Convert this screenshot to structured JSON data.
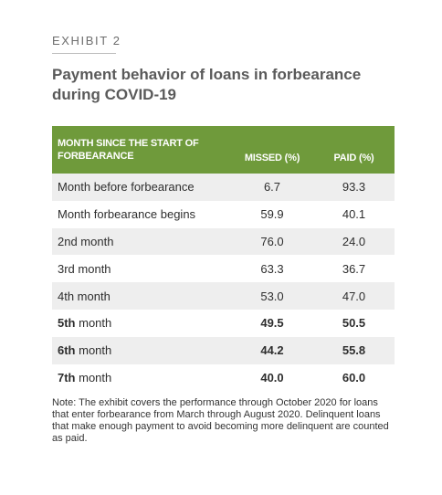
{
  "exhibit": "EXHIBIT 2",
  "title": "Payment behavior of loans in forbearance during COVID-19",
  "note": "Note: The exhibit covers the performance through October 2020 for loans that enter forbearance from March through August 2020. Delinquent loans that make enough payment to avoid becoming more delinquent are counted as paid.",
  "colors": {
    "header_bg": "#6f9a3b",
    "row_shade": "#eeeeee"
  },
  "chart_data": {
    "type": "table",
    "title": "Payment behavior of loans in forbearance during COVID-19",
    "columns": [
      "MONTH SINCE THE START OF FORBEARANCE",
      "MISSED (%)",
      "PAID (%)"
    ],
    "rows": [
      {
        "month_bold": "",
        "month_rest": "Month before forbearance",
        "missed": "6.7",
        "paid": "93.3",
        "bold": false
      },
      {
        "month_bold": "",
        "month_rest": "Month forbearance begins",
        "missed": "59.9",
        "paid": "40.1",
        "bold": false
      },
      {
        "month_bold": "",
        "month_rest": "2nd month",
        "missed": "76.0",
        "paid": "24.0",
        "bold": false
      },
      {
        "month_bold": "",
        "month_rest": "3rd month",
        "missed": "63.3",
        "paid": "36.7",
        "bold": false
      },
      {
        "month_bold": "",
        "month_rest": "4th month",
        "missed": "53.0",
        "paid": "47.0",
        "bold": false
      },
      {
        "month_bold": "5th",
        "month_rest": " month",
        "missed": "49.5",
        "paid": "50.5",
        "bold": true
      },
      {
        "month_bold": "6th",
        "month_rest": " month",
        "missed": "44.2",
        "paid": "55.8",
        "bold": true
      },
      {
        "month_bold": "7th",
        "month_rest": " month",
        "missed": "40.0",
        "paid": "60.0",
        "bold": true
      }
    ]
  }
}
